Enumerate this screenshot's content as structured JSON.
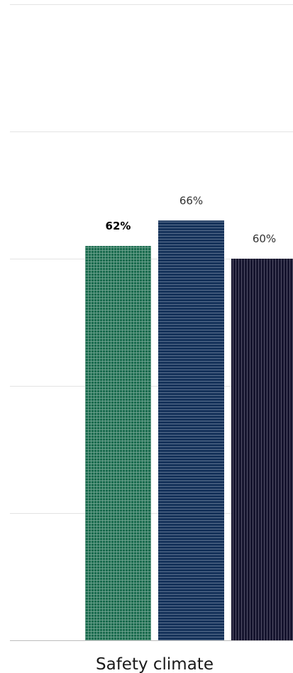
{
  "chart_data": {
    "type": "bar",
    "categories": [
      "Safety climate"
    ],
    "series": [
      {
        "values": [
          62
        ],
        "label": "62%",
        "color": "#1a6b4e",
        "pattern": "grid",
        "label_bold": true
      },
      {
        "values": [
          66
        ],
        "label": "66%",
        "color": "#15325a",
        "pattern": "horizontal-lines",
        "label_bold": false
      },
      {
        "values": [
          60
        ],
        "label": "60%",
        "color": "#15142e",
        "pattern": "vertical-lines",
        "label_bold": false
      }
    ],
    "ylim": [
      0,
      100
    ],
    "grid": true,
    "legend": "none"
  }
}
